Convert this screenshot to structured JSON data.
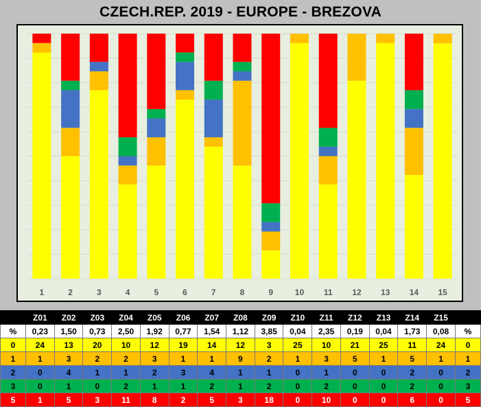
{
  "chart_data": {
    "type": "bar",
    "stacked": true,
    "title": "CZECH.REP. 2019 - EUROPE - BREZOVA",
    "categories": [
      "1",
      "2",
      "3",
      "4",
      "5",
      "6",
      "7",
      "8",
      "9",
      "10",
      "11",
      "12",
      "13",
      "14",
      "15"
    ],
    "series": [
      {
        "level": "0",
        "color": "#ffff00",
        "values": [
          24,
          13,
          20,
          10,
          12,
          19,
          14,
          12,
          3,
          25,
          10,
          21,
          25,
          11,
          24
        ]
      },
      {
        "level": "1",
        "color": "#ffc000",
        "values": [
          1,
          3,
          2,
          2,
          3,
          1,
          1,
          9,
          2,
          1,
          3,
          5,
          1,
          5,
          1
        ]
      },
      {
        "level": "2",
        "color": "#4472c4",
        "values": [
          0,
          4,
          1,
          1,
          2,
          3,
          4,
          1,
          1,
          0,
          1,
          0,
          0,
          2,
          0
        ]
      },
      {
        "level": "3",
        "color": "#00b050",
        "values": [
          0,
          1,
          0,
          2,
          1,
          1,
          2,
          1,
          2,
          0,
          2,
          0,
          0,
          2,
          0
        ]
      },
      {
        "level": "5",
        "color": "#ff0000",
        "values": [
          1,
          5,
          3,
          11,
          8,
          2,
          5,
          3,
          18,
          0,
          10,
          0,
          0,
          6,
          0
        ]
      }
    ],
    "grid": true,
    "legend": "none"
  },
  "table": {
    "codes": [
      "Z01",
      "Z02",
      "Z03",
      "Z04",
      "Z05",
      "Z06",
      "Z07",
      "Z08",
      "Z09",
      "Z10",
      "Z11",
      "Z12",
      "Z13",
      "Z14",
      "Z15"
    ],
    "pct_label": "%",
    "percent": [
      "0,23",
      "1,50",
      "0,73",
      "2,50",
      "1,92",
      "0,77",
      "1,54",
      "1,12",
      "3,85",
      "0,04",
      "2,35",
      "0,19",
      "0,04",
      "1,73",
      "0,08"
    ],
    "rows": [
      {
        "label": "0",
        "color": "#ffff00",
        "text_color": "#000000",
        "values": [
          "24",
          "13",
          "20",
          "10",
          "12",
          "19",
          "14",
          "12",
          "3",
          "25",
          "10",
          "21",
          "25",
          "11",
          "24"
        ]
      },
      {
        "label": "1",
        "color": "#ffc000",
        "text_color": "#000000",
        "values": [
          "1",
          "3",
          "2",
          "2",
          "3",
          "1",
          "1",
          "9",
          "2",
          "1",
          "3",
          "5",
          "1",
          "5",
          "1"
        ]
      },
      {
        "label": "2",
        "color": "#4472c4",
        "text_color": "#000000",
        "values": [
          "0",
          "4",
          "1",
          "1",
          "2",
          "3",
          "4",
          "1",
          "1",
          "0",
          "1",
          "0",
          "0",
          "2",
          "0"
        ]
      },
      {
        "label": "3",
        "color": "#00b050",
        "text_color": "#000000",
        "values": [
          "0",
          "1",
          "0",
          "2",
          "1",
          "1",
          "2",
          "1",
          "2",
          "0",
          "2",
          "0",
          "0",
          "2",
          "0"
        ]
      },
      {
        "label": "5",
        "color": "#ff0000",
        "text_color": "#ffffff",
        "values": [
          "1",
          "5",
          "3",
          "11",
          "8",
          "2",
          "5",
          "3",
          "18",
          "0",
          "10",
          "0",
          "0",
          "6",
          "0"
        ]
      }
    ]
  }
}
